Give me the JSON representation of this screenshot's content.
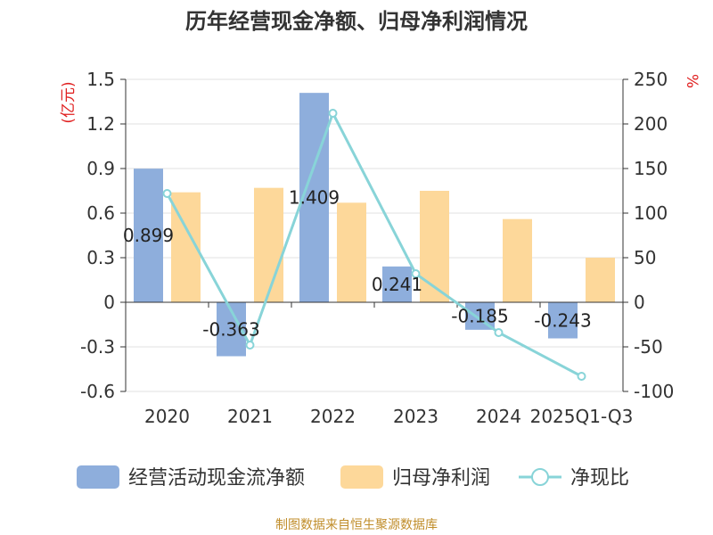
{
  "chart_data": {
    "type": "bar",
    "title": "历年经营现金净额、归母净利润情况",
    "categories": [
      "2020",
      "2021",
      "2022",
      "2023",
      "2024",
      "2025Q1-Q3"
    ],
    "left_axis": {
      "unit": "(亿元)",
      "ylim": [
        -0.6,
        1.5
      ],
      "ticks": [
        -0.6,
        -0.3,
        0,
        0.3,
        0.6,
        0.9,
        1.2,
        1.5
      ]
    },
    "right_axis": {
      "unit": "%",
      "ylim": [
        -100,
        250
      ],
      "ticks": [
        -100,
        -50,
        0,
        50,
        100,
        150,
        200,
        250
      ]
    },
    "series": [
      {
        "name": "经营活动现金流净额",
        "type": "bar",
        "axis": "left",
        "color": "#8eaedc",
        "values": [
          0.899,
          -0.363,
          1.409,
          0.241,
          -0.185,
          -0.243
        ],
        "labels": [
          "0.899",
          "-0.363",
          "1.409",
          "0.241",
          "-0.185",
          "-0.243"
        ]
      },
      {
        "name": "归母净利润",
        "type": "bar",
        "axis": "left",
        "color": "#fdd89a",
        "values": [
          0.74,
          0.77,
          0.67,
          0.75,
          0.56,
          0.3
        ]
      },
      {
        "name": "净现比",
        "type": "line",
        "axis": "right",
        "color": "#88d4d8",
        "values": [
          122,
          -48,
          212,
          32,
          -34,
          -83
        ]
      }
    ],
    "grid": true,
    "legend_position": "bottom"
  },
  "footer": {
    "source": "制图数据来自恒生聚源数据库"
  }
}
